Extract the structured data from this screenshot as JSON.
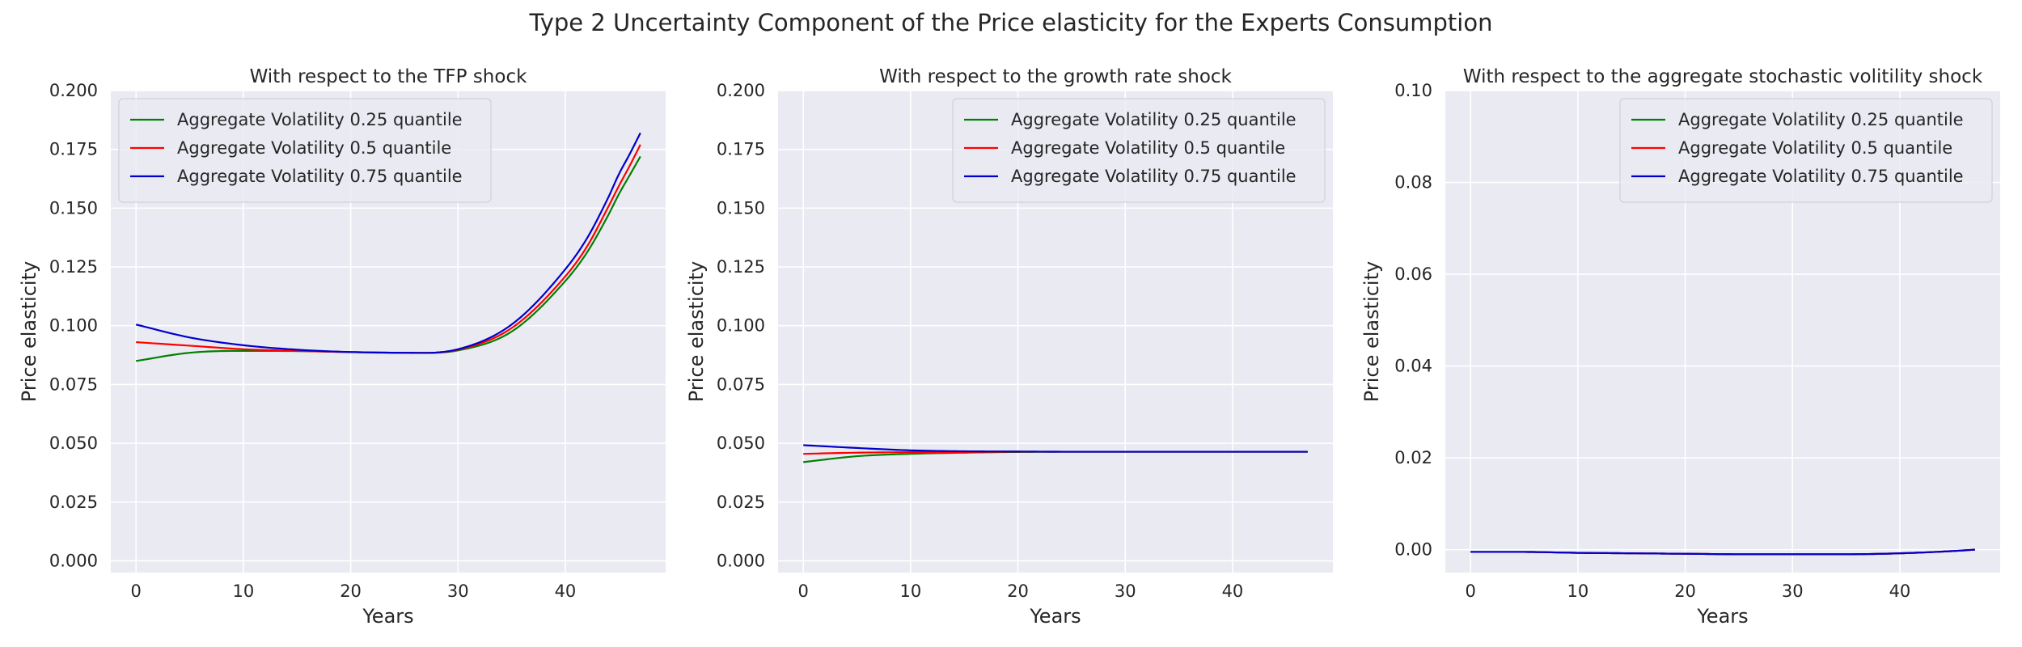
{
  "figure": {
    "title": "Type 2 Uncertainty Component of the Price elasticity for the Experts Consumption"
  },
  "colors": {
    "q25": "#008000",
    "q50": "#ff0000",
    "q75": "#0000cc",
    "plot_background": "#eaeaf2",
    "grid": "#ffffff"
  },
  "chart_data": [
    {
      "type": "line",
      "title": "With respect to the TFP shock",
      "xlabel": "Years",
      "ylabel": "Price elasticity",
      "xlim": [
        -2.35,
        49.35
      ],
      "ylim": [
        -0.005,
        0.2
      ],
      "xticks": [
        0,
        10,
        20,
        30,
        40
      ],
      "yticks": [
        0.0,
        0.025,
        0.05,
        0.075,
        0.1,
        0.125,
        0.15,
        0.175,
        0.2
      ],
      "ytick_labels": [
        "0.000",
        "0.025",
        "0.050",
        "0.075",
        "0.100",
        "0.125",
        "0.150",
        "0.175",
        "0.200"
      ],
      "grid": true,
      "legend_position": "top-left",
      "x": [
        0,
        5,
        10,
        15,
        20,
        25,
        30,
        35,
        40,
        42,
        44,
        45,
        46,
        47
      ],
      "series": [
        {
          "name": "Aggregate Volatility 0.25 quantile",
          "color": "q25",
          "values": [
            0.085,
            0.0885,
            0.0893,
            0.0892,
            0.0888,
            0.0885,
            0.0895,
            0.0975,
            0.119,
            0.131,
            0.147,
            0.156,
            0.164,
            0.172
          ]
        },
        {
          "name": "Aggregate Volatility 0.5 quantile",
          "color": "q50",
          "values": [
            0.093,
            0.0915,
            0.09,
            0.0893,
            0.0888,
            0.0885,
            0.0898,
            0.099,
            0.121,
            0.1335,
            0.1505,
            0.1595,
            0.168,
            0.177
          ]
        },
        {
          "name": "Aggregate Volatility 0.75 quantile",
          "color": "q75",
          "values": [
            0.1005,
            0.095,
            0.0917,
            0.0898,
            0.0888,
            0.0885,
            0.09,
            0.1005,
            0.124,
            0.137,
            0.1545,
            0.1645,
            0.173,
            0.182
          ]
        }
      ]
    },
    {
      "type": "line",
      "title": "With respect to the growth rate shock",
      "xlabel": "Years",
      "ylabel": "Price elasticity",
      "xlim": [
        -2.35,
        49.35
      ],
      "ylim": [
        -0.005,
        0.2
      ],
      "xticks": [
        0,
        10,
        20,
        30,
        40
      ],
      "yticks": [
        0.0,
        0.025,
        0.05,
        0.075,
        0.1,
        0.125,
        0.15,
        0.175,
        0.2
      ],
      "ytick_labels": [
        "0.000",
        "0.025",
        "0.050",
        "0.075",
        "0.100",
        "0.125",
        "0.150",
        "0.175",
        "0.200"
      ],
      "grid": true,
      "legend_position": "top-right",
      "x": [
        0,
        5,
        10,
        15,
        20,
        25,
        30,
        35,
        40,
        47
      ],
      "series": [
        {
          "name": "Aggregate Volatility 0.25 quantile",
          "color": "q25",
          "values": [
            0.042,
            0.0445,
            0.0455,
            0.046,
            0.0463,
            0.0464,
            0.0464,
            0.0464,
            0.0464,
            0.0464
          ]
        },
        {
          "name": "Aggregate Volatility 0.5 quantile",
          "color": "q50",
          "values": [
            0.0455,
            0.046,
            0.0462,
            0.0463,
            0.0464,
            0.0464,
            0.0464,
            0.0464,
            0.0464,
            0.0464
          ]
        },
        {
          "name": "Aggregate Volatility 0.75 quantile",
          "color": "q75",
          "values": [
            0.0492,
            0.048,
            0.047,
            0.0466,
            0.0465,
            0.0464,
            0.0464,
            0.0464,
            0.0464,
            0.0464
          ]
        }
      ]
    },
    {
      "type": "line",
      "title": "With respect to the aggregate stochastic volitility shock",
      "xlabel": "Years",
      "ylabel": "Price elasticity",
      "xlim": [
        -2.35,
        49.35
      ],
      "ylim": [
        -0.005,
        0.1
      ],
      "xticks": [
        0,
        10,
        20,
        30,
        40
      ],
      "yticks": [
        0.0,
        0.02,
        0.04,
        0.06,
        0.08,
        0.1
      ],
      "ytick_labels": [
        "0.00",
        "0.02",
        "0.04",
        "0.06",
        "0.08",
        "0.10"
      ],
      "grid": true,
      "legend_position": "top-right",
      "x": [
        0,
        5,
        10,
        15,
        20,
        25,
        30,
        35,
        40,
        45,
        47
      ],
      "series": [
        {
          "name": "Aggregate Volatility 0.25 quantile",
          "color": "q25",
          "values": [
            -0.0005,
            -0.0005,
            -0.0007,
            -0.0008,
            -0.0009,
            -0.001,
            -0.001,
            -0.001,
            -0.0008,
            -0.0003,
            0.0
          ]
        },
        {
          "name": "Aggregate Volatility 0.5 quantile",
          "color": "q50",
          "values": [
            -0.0005,
            -0.0005,
            -0.0007,
            -0.0008,
            -0.0009,
            -0.001,
            -0.001,
            -0.001,
            -0.0008,
            -0.0003,
            0.0
          ]
        },
        {
          "name": "Aggregate Volatility 0.75 quantile",
          "color": "q75",
          "values": [
            -0.0005,
            -0.0005,
            -0.0007,
            -0.0008,
            -0.0009,
            -0.001,
            -0.001,
            -0.001,
            -0.0008,
            -0.0003,
            0.0
          ]
        }
      ]
    }
  ]
}
